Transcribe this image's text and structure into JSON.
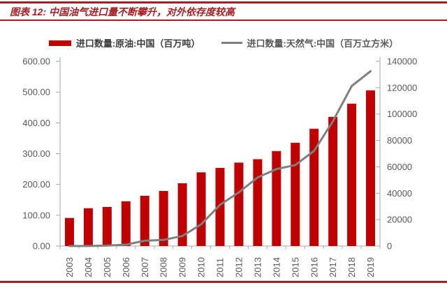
{
  "header": {
    "title": "图表 12:  中国油气进口量不断攀升，对外依存度较高"
  },
  "legend": {
    "items": [
      {
        "label": "进口数量:原油:中国（百万吨）",
        "swatch": "bar-swatch",
        "color": "#C00000",
        "text_color": "#3B3B3B"
      },
      {
        "label": "进口数量:天然气:中国（百万立方米）",
        "swatch": "line-swatch",
        "color": "#7F7F7F",
        "text_color": "#595959"
      }
    ]
  },
  "chart_data": {
    "type": "bar+line combo",
    "categories": [
      "2003",
      "2004",
      "2005",
      "2006",
      "2007",
      "2008",
      "2009",
      "2010",
      "2011",
      "2012",
      "2013",
      "2014",
      "2015",
      "2016",
      "2017",
      "2018",
      "2019"
    ],
    "series": [
      {
        "name": "进口数量:原油:中国（百万吨）",
        "type": "bar",
        "axis": "left",
        "color": "#C00000",
        "values": [
          91.1,
          122.7,
          126.8,
          145.2,
          163.2,
          178.9,
          203.8,
          239.3,
          253.8,
          271.0,
          282.0,
          308.4,
          335.5,
          381.0,
          419.6,
          462.4,
          505.7
        ]
      },
      {
        "name": "进口数量:天然气:中国（百万立方米）",
        "type": "line",
        "axis": "right",
        "color": "#7F7F7F",
        "values": [
          0,
          0,
          300,
          1000,
          4000,
          4600,
          7600,
          16500,
          31200,
          40700,
          52000,
          58300,
          61400,
          72100,
          94600,
          121300,
          132500
        ]
      }
    ],
    "left_axis": {
      "min": 0,
      "max": 600,
      "step": 100,
      "tick_labels": [
        "0.00",
        "100.00",
        "200.00",
        "300.00",
        "400.00",
        "500.00",
        "600.00"
      ]
    },
    "right_axis": {
      "min": 0,
      "max": 140000,
      "step": 20000,
      "tick_labels": [
        "0",
        "20000",
        "40000",
        "60000",
        "80000",
        "100000",
        "120000",
        "140000"
      ]
    },
    "grid": false,
    "legend_position": "top"
  },
  "colors": {
    "accent_red": "#A71F23",
    "bar_red": "#C00000",
    "line_gray": "#7F7F7F",
    "axis_gray": "#A6A6A6",
    "tick_text_gray": "#595959"
  }
}
